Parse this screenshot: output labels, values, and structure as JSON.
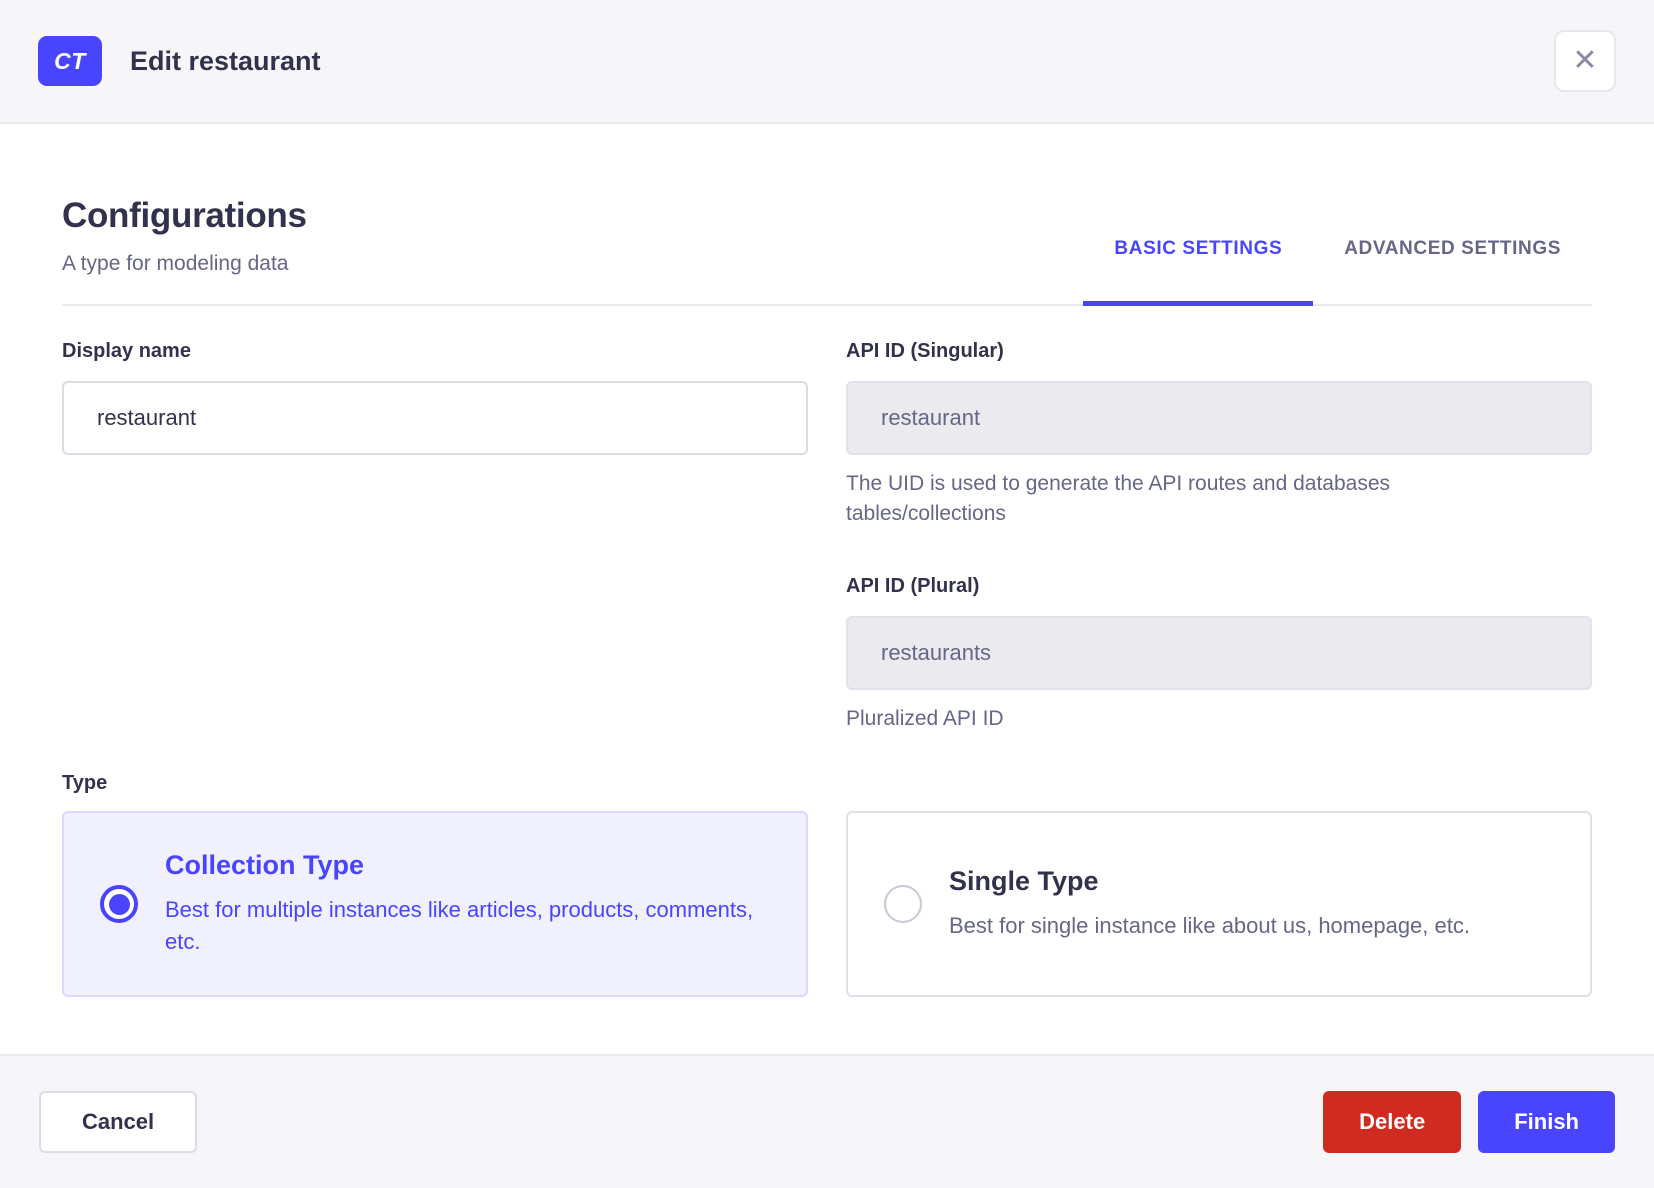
{
  "header": {
    "badge": "CT",
    "title": "Edit restaurant",
    "close_icon": "✕"
  },
  "section": {
    "title": "Configurations",
    "subtitle": "A type for modeling data"
  },
  "tabs": [
    {
      "label": "BASIC SETTINGS",
      "active": true
    },
    {
      "label": "ADVANCED SETTINGS",
      "active": false
    }
  ],
  "form": {
    "display_name": {
      "label": "Display name",
      "value": "restaurant"
    },
    "api_id_singular": {
      "label": "API ID (Singular)",
      "value": "restaurant",
      "helper": "The UID is used to generate the API routes and databases tables/collections"
    },
    "api_id_plural": {
      "label": "API ID (Plural)",
      "value": "restaurants",
      "helper": "Pluralized API ID"
    },
    "type": {
      "label": "Type",
      "options": [
        {
          "title": "Collection Type",
          "description": "Best for multiple instances like articles, products, comments, etc.",
          "selected": true
        },
        {
          "title": "Single Type",
          "description": "Best for single instance like about us, homepage, etc.",
          "selected": false
        }
      ]
    }
  },
  "footer": {
    "cancel_label": "Cancel",
    "delete_label": "Delete",
    "finish_label": "Finish"
  },
  "colors": {
    "primary": "#4945ff",
    "primary_light_bg": "#f0f0ff",
    "primary_light_border": "#d9d8ff",
    "danger": "#d02b20",
    "header_bg": "#f6f6f9",
    "border": "#eaeaef",
    "input_border": "#dcdce4",
    "disabled_bg": "#eaeaef",
    "text_primary": "#32324d",
    "text_secondary": "#666687"
  }
}
